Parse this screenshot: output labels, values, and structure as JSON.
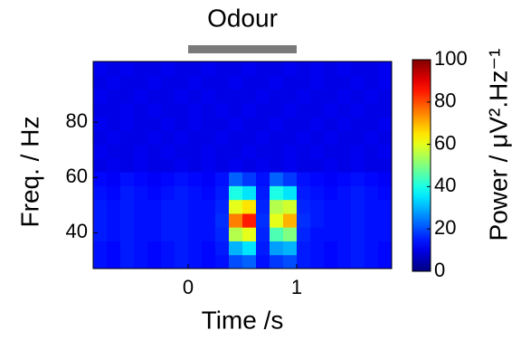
{
  "chart_data": {
    "type": "heatmap",
    "title": "Odour",
    "x_label": "Time /s",
    "y_label": "Freq. / Hz",
    "colorbar_label": "Power / μV².Hz⁻¹",
    "stimulus": [
      0,
      1
    ],
    "x": [
      -0.8125,
      -0.6875,
      -0.5625,
      -0.4375,
      -0.3125,
      -0.1875,
      -0.0625,
      0.0625,
      0.1875,
      0.3125,
      0.4375,
      0.5625,
      0.6875,
      0.8125,
      0.9375,
      1.0625,
      1.1875,
      1.3125,
      1.4375,
      1.5625,
      1.6875,
      1.8125
    ],
    "y": [
      29.5,
      34.5,
      39.5,
      44.5,
      49.5,
      54.5,
      59.5,
      64.5,
      69.5,
      74.5,
      79.5,
      84.5,
      89.5,
      94.5,
      99.5
    ],
    "z": [
      [
        14,
        13,
        15,
        14,
        13,
        14,
        15,
        14,
        13,
        14,
        20,
        22,
        14,
        18,
        20,
        15,
        14,
        13,
        14,
        15,
        14,
        13
      ],
      [
        14,
        13,
        15,
        14,
        13,
        14,
        15,
        14,
        13,
        15,
        30,
        35,
        15,
        28,
        30,
        15,
        14,
        13,
        14,
        15,
        14,
        13
      ],
      [
        15,
        14,
        15,
        14,
        14,
        15,
        15,
        14,
        14,
        16,
        55,
        60,
        16,
        45,
        50,
        16,
        14,
        14,
        14,
        15,
        14,
        14
      ],
      [
        15,
        14,
        15,
        14,
        14,
        15,
        15,
        14,
        14,
        17,
        75,
        85,
        17,
        60,
        70,
        17,
        15,
        14,
        14,
        15,
        14,
        14
      ],
      [
        15,
        14,
        15,
        14,
        14,
        15,
        15,
        14,
        14,
        16,
        60,
        65,
        16,
        55,
        58,
        16,
        15,
        14,
        14,
        15,
        14,
        14
      ],
      [
        14,
        13,
        15,
        14,
        13,
        14,
        15,
        14,
        13,
        15,
        40,
        35,
        15,
        40,
        35,
        15,
        14,
        13,
        14,
        15,
        14,
        13
      ],
      [
        13,
        12,
        14,
        13,
        12,
        13,
        14,
        13,
        12,
        14,
        22,
        18,
        14,
        22,
        18,
        14,
        13,
        12,
        13,
        14,
        13,
        12
      ],
      [
        10,
        11,
        10,
        11,
        10,
        10,
        11,
        10,
        11,
        10,
        11,
        10,
        11,
        10,
        11,
        10,
        10,
        11,
        10,
        11,
        10,
        10
      ],
      [
        11,
        10,
        10,
        11,
        10,
        11,
        10,
        10,
        11,
        10,
        10,
        11,
        10,
        10,
        11,
        10,
        11,
        10,
        10,
        11,
        10,
        11
      ],
      [
        10,
        11,
        10,
        10,
        11,
        10,
        11,
        10,
        10,
        11,
        10,
        10,
        11,
        10,
        10,
        11,
        10,
        11,
        10,
        10,
        11,
        10
      ],
      [
        11,
        10,
        11,
        10,
        10,
        11,
        10,
        11,
        10,
        10,
        11,
        10,
        10,
        11,
        10,
        10,
        11,
        10,
        11,
        10,
        10,
        11
      ],
      [
        10,
        10,
        11,
        10,
        11,
        10,
        10,
        11,
        10,
        11,
        10,
        11,
        10,
        10,
        11,
        10,
        10,
        11,
        10,
        11,
        10,
        10
      ],
      [
        11,
        10,
        10,
        11,
        10,
        10,
        11,
        10,
        11,
        10,
        10,
        10,
        11,
        10,
        10,
        11,
        10,
        10,
        11,
        10,
        11,
        10
      ],
      [
        10,
        11,
        10,
        10,
        11,
        10,
        10,
        11,
        10,
        10,
        11,
        10,
        10,
        11,
        10,
        10,
        11,
        10,
        10,
        11,
        10,
        11
      ],
      [
        11,
        10,
        11,
        10,
        10,
        11,
        10,
        10,
        11,
        10,
        10,
        11,
        10,
        10,
        11,
        10,
        11,
        10,
        11,
        10,
        10,
        11
      ]
    ],
    "xlim": [
      -0.875,
      1.875
    ],
    "ylim": [
      27,
      102
    ],
    "xticks": [
      0,
      1
    ],
    "yticks": [
      40,
      60,
      80
    ],
    "clim": [
      0,
      100
    ],
    "cticks": [
      0,
      20,
      40,
      60,
      80,
      100
    ],
    "colormap": "jet",
    "stimulus_color": "#7a7a7a"
  }
}
